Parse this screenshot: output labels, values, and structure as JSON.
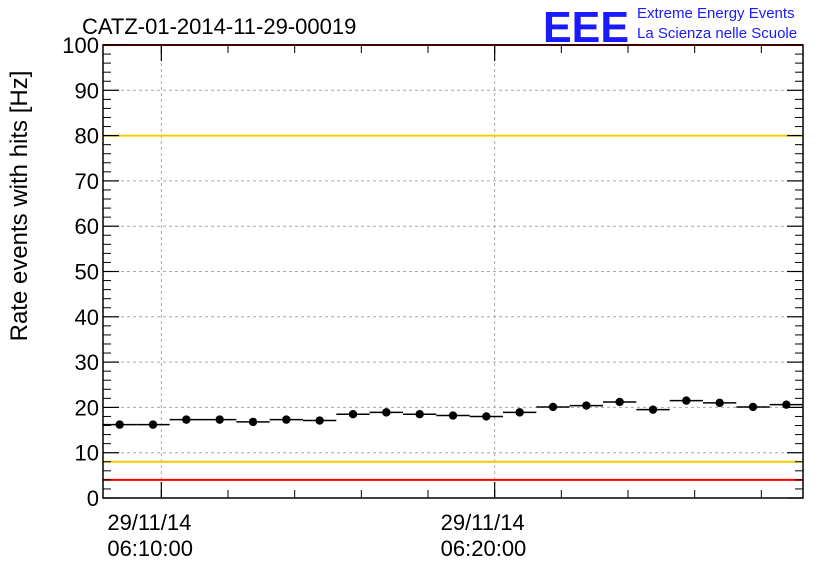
{
  "colors": {
    "threshold_red": "#ff0000",
    "threshold_yellow": "#f2cc00",
    "grid": "#aaaaaa",
    "logo_blue": "#1a1aff",
    "marker": "#000000"
  },
  "logo": {
    "letters": "EEE",
    "line1": "Extreme Energy Events",
    "line2": "La Scienza nelle Scuole"
  },
  "chart_data": {
    "type": "scatter",
    "title": "CATZ-01-2014-11-29-00019",
    "ylabel": "Rate events with hits [Hz]",
    "xlabel": "",
    "ylim": [
      0,
      100
    ],
    "yticks": [
      "0",
      "10",
      "20",
      "30",
      "40",
      "50",
      "60",
      "70",
      "80",
      "90",
      "100"
    ],
    "xlim": [
      "2014-11-29 06:08:15",
      "2014-11-29 06:29:15"
    ],
    "xtick_labels": [
      {
        "time": "2014-11-29 06:10:00",
        "date": "29/11/14",
        "clock": "06:10:00"
      },
      {
        "time": "2014-11-29 06:20:00",
        "date": "29/11/14",
        "clock": "06:20:00"
      }
    ],
    "grid": true,
    "x_error_half_width_seconds": 30,
    "points": [
      {
        "x": "2014-11-29 06:08:45",
        "y": 16.2
      },
      {
        "x": "2014-11-29 06:09:45",
        "y": 16.2
      },
      {
        "x": "2014-11-29 06:10:45",
        "y": 17.3
      },
      {
        "x": "2014-11-29 06:11:45",
        "y": 17.3
      },
      {
        "x": "2014-11-29 06:12:45",
        "y": 16.8
      },
      {
        "x": "2014-11-29 06:13:45",
        "y": 17.3
      },
      {
        "x": "2014-11-29 06:14:45",
        "y": 17.1
      },
      {
        "x": "2014-11-29 06:15:45",
        "y": 18.5
      },
      {
        "x": "2014-11-29 06:16:45",
        "y": 18.9
      },
      {
        "x": "2014-11-29 06:17:45",
        "y": 18.5
      },
      {
        "x": "2014-11-29 06:18:45",
        "y": 18.2
      },
      {
        "x": "2014-11-29 06:19:45",
        "y": 18.0
      },
      {
        "x": "2014-11-29 06:20:45",
        "y": 18.9
      },
      {
        "x": "2014-11-29 06:21:45",
        "y": 20.1
      },
      {
        "x": "2014-11-29 06:22:45",
        "y": 20.4
      },
      {
        "x": "2014-11-29 06:23:45",
        "y": 21.2
      },
      {
        "x": "2014-11-29 06:24:45",
        "y": 19.5
      },
      {
        "x": "2014-11-29 06:25:45",
        "y": 21.5
      },
      {
        "x": "2014-11-29 06:26:45",
        "y": 21.0
      },
      {
        "x": "2014-11-29 06:27:45",
        "y": 20.1
      },
      {
        "x": "2014-11-29 06:28:45",
        "y": 20.6
      }
    ],
    "reference_lines": [
      {
        "y": 100,
        "color": "#ff0000"
      },
      {
        "y": 80,
        "color": "#f2cc00"
      },
      {
        "y": 8,
        "color": "#f2cc00"
      },
      {
        "y": 4,
        "color": "#ff0000"
      }
    ]
  }
}
